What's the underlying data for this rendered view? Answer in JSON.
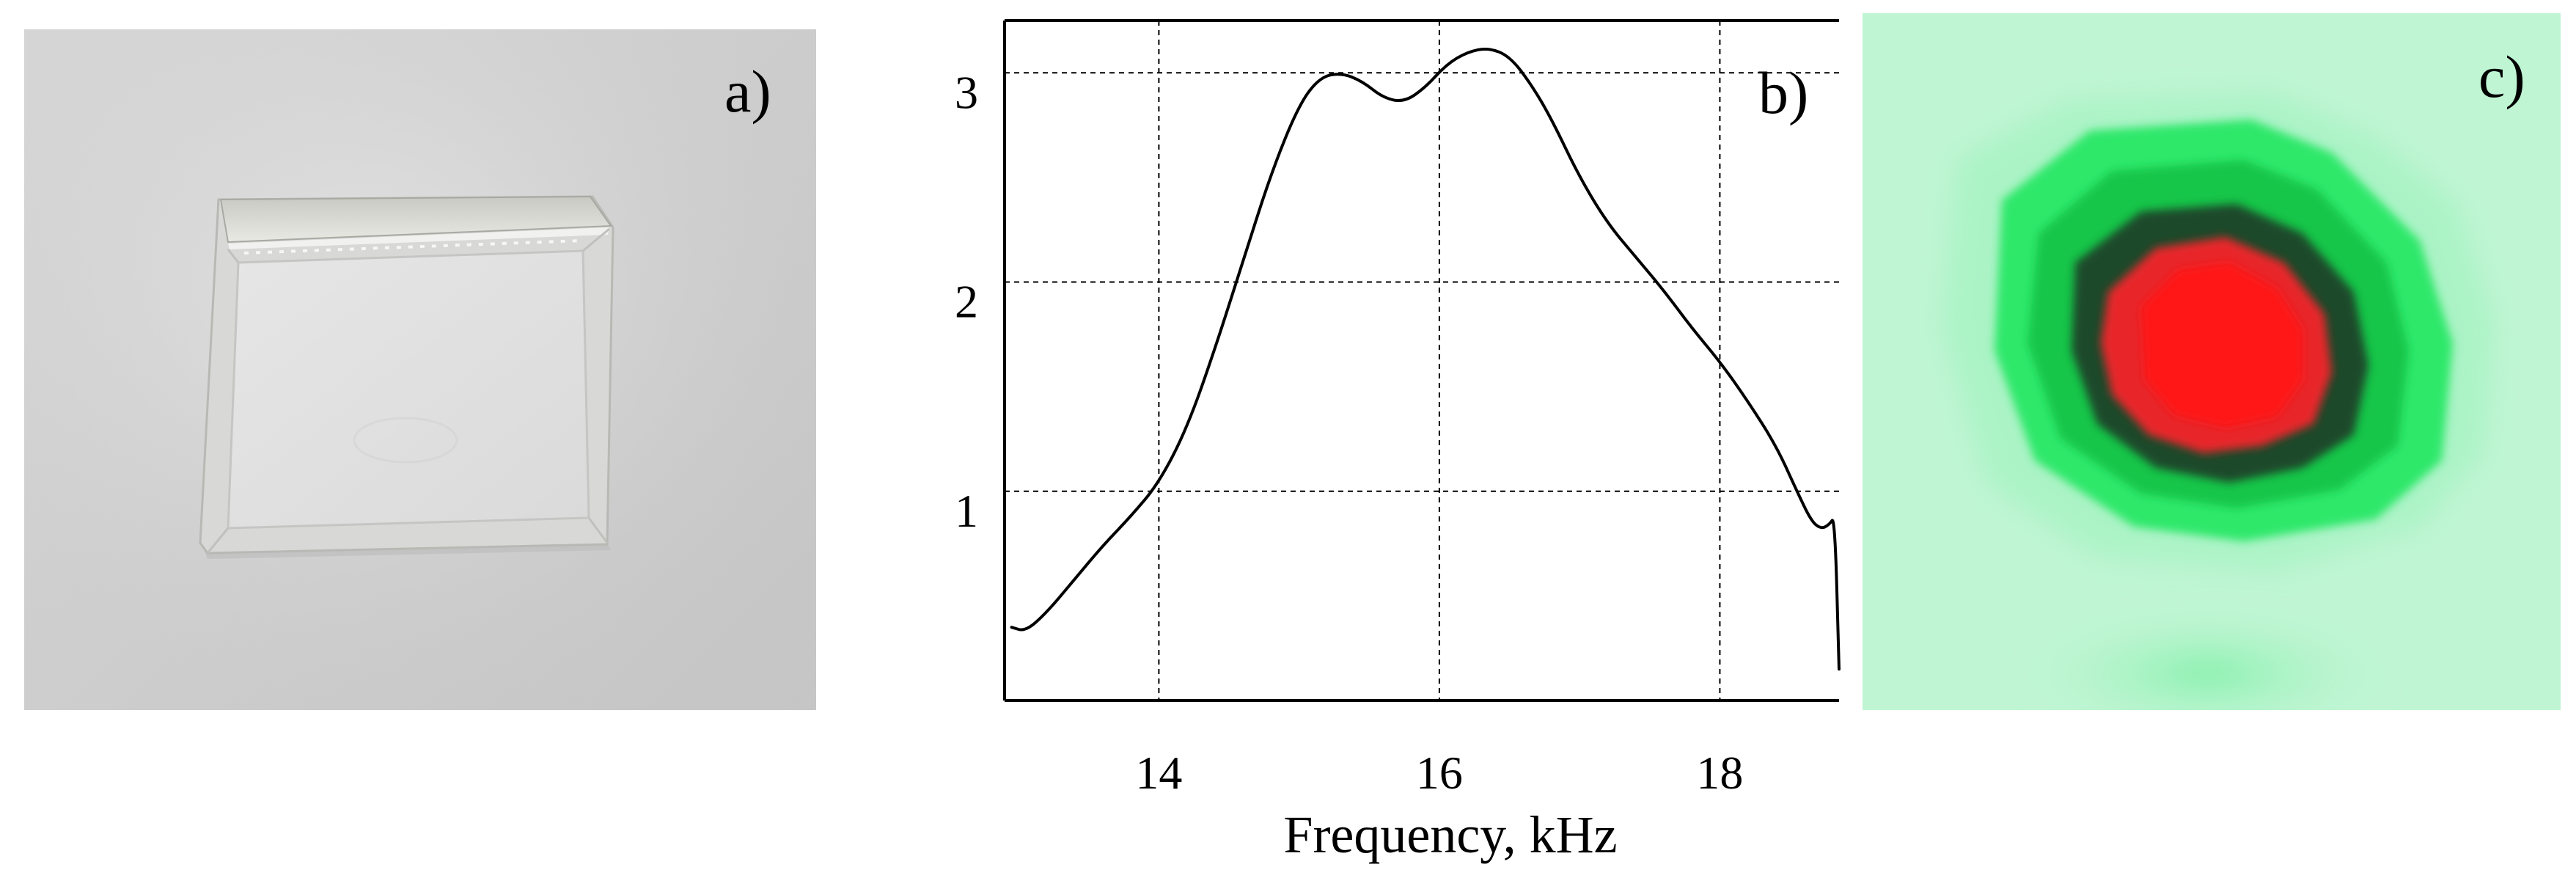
{
  "panels": {
    "a": {
      "label": "a)"
    },
    "b": {
      "label": "b)"
    },
    "c": {
      "label": "c)"
    }
  },
  "chart_data": {
    "type": "line",
    "title": "",
    "xlabel": "Frequency, kHz",
    "ylabel": "",
    "xlim": [
      12.9,
      18.85
    ],
    "ylim": [
      0,
      3.25
    ],
    "x_ticks": [
      14,
      16,
      18
    ],
    "x_tick_labels": [
      "14",
      "16",
      "18"
    ],
    "y_ticks": [
      1,
      2,
      3
    ],
    "y_tick_labels": [
      "1",
      "2",
      "3"
    ],
    "grid": true,
    "series": [
      {
        "color": "#000000",
        "x": [
          12.95,
          13.05,
          13.2,
          13.4,
          13.6,
          13.8,
          14.0,
          14.2,
          14.4,
          14.6,
          14.8,
          15.0,
          15.15,
          15.3,
          15.45,
          15.6,
          15.75,
          15.9,
          16.05,
          16.2,
          16.35,
          16.5,
          16.65,
          16.8,
          17.0,
          17.2,
          17.4,
          17.6,
          17.8,
          18.0,
          18.2,
          18.4,
          18.55,
          18.65,
          18.72,
          18.78,
          18.82,
          18.85
        ],
        "y": [
          0.35,
          0.33,
          0.42,
          0.58,
          0.74,
          0.88,
          1.04,
          1.3,
          1.68,
          2.1,
          2.52,
          2.85,
          2.98,
          3.0,
          2.96,
          2.88,
          2.86,
          2.93,
          3.04,
          3.1,
          3.12,
          3.08,
          2.95,
          2.78,
          2.5,
          2.28,
          2.12,
          1.96,
          1.78,
          1.62,
          1.43,
          1.22,
          1.0,
          0.86,
          0.82,
          0.84,
          0.88,
          0.15
        ]
      }
    ]
  }
}
